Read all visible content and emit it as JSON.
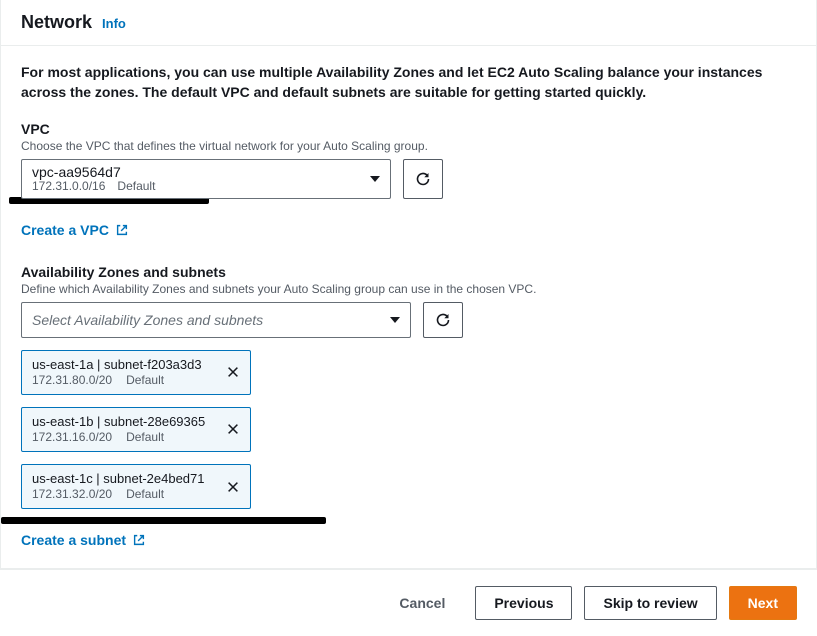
{
  "colors": {
    "link": "#0073bb",
    "primary_bg": "#ec7211",
    "primary_border": "#e47911",
    "border": "#eaeded",
    "text": "#16191f",
    "muted": "#545b64",
    "tag_bg": "#f0f7fb"
  },
  "header": {
    "title": "Network",
    "info": "Info"
  },
  "intro": "For most applications, you can use multiple Availability Zones and let EC2 Auto Scaling balance your instances across the zones. The default VPC and default subnets are suitable for getting started quickly.",
  "vpc": {
    "label": "VPC",
    "desc": "Choose the VPC that defines the virtual network for your Auto Scaling group.",
    "selected_id": "vpc-aa9564d7",
    "selected_cidr": "172.31.0.0/16",
    "selected_tag": "Default",
    "create_link": "Create a VPC"
  },
  "subnets": {
    "label": "Availability Zones and subnets",
    "desc": "Define which Availability Zones and subnets your Auto Scaling group can use in the chosen VPC.",
    "placeholder": "Select Availability Zones and subnets",
    "create_link": "Create a subnet",
    "selected": [
      {
        "az": "us-east-1a",
        "subnet": "subnet-f203a3d3",
        "cidr": "172.31.80.0/20",
        "tag": "Default"
      },
      {
        "az": "us-east-1b",
        "subnet": "subnet-28e69365",
        "cidr": "172.31.16.0/20",
        "tag": "Default"
      },
      {
        "az": "us-east-1c",
        "subnet": "subnet-2e4bed71",
        "cidr": "172.31.32.0/20",
        "tag": "Default"
      }
    ]
  },
  "footer": {
    "cancel": "Cancel",
    "previous": "Previous",
    "skip": "Skip to review",
    "next": "Next"
  }
}
